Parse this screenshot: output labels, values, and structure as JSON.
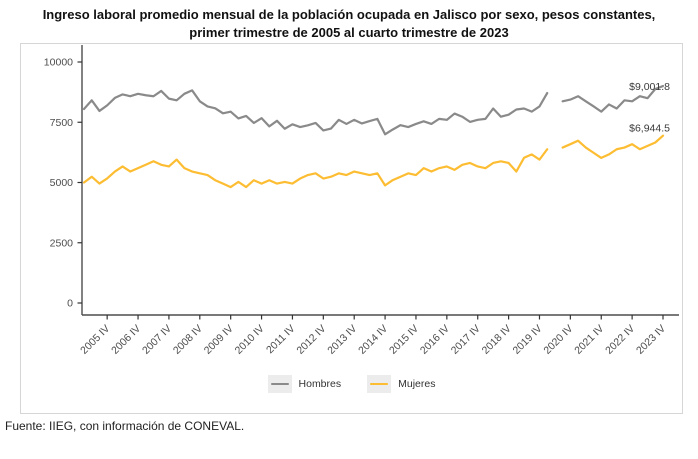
{
  "title": "Ingreso laboral promedio mensual de la población ocupada en Jalisco por sexo, pesos constantes, primer trimestre de 2005 al cuarto trimestre de 2023",
  "footer": {
    "source": "Fuente: IIEG, con información de CONEVAL."
  },
  "annotations": {
    "hombres_last": "$9,001.8",
    "mujeres_last": "$6,944.5"
  },
  "colors": {
    "hombres_line": "#8a8a8a",
    "mujeres_line": "#fdbd33",
    "axis": "#4d4d4d",
    "legend_key_bg": "#ececec"
  },
  "chart_data": {
    "type": "line",
    "title": "Ingreso laboral promedio mensual de la población ocupada en Jalisco por sexo, pesos constantes, primer trimestre de 2005 al cuarto trimestre de 2023",
    "x_start": "2005 Q1",
    "x_end": "2023 Q4",
    "x_frequency": "quarterly",
    "gap_quarter": "2020 Q2",
    "x_tick_labels": [
      "2005 IV",
      "2006 IV",
      "2007 IV",
      "2008 IV",
      "2009 IV",
      "2010 IV",
      "2011 IV",
      "2012 IV",
      "2013 IV",
      "2014 IV",
      "2015 IV",
      "2016 IV",
      "2017 IV",
      "2018 IV",
      "2019 IV",
      "2020 IV",
      "2021 IV",
      "2022 IV",
      "2023 IV"
    ],
    "y_ticks": [
      0,
      2500,
      5000,
      7500,
      10000
    ],
    "ylim": [
      0,
      10000
    ],
    "legend_position": "bottom",
    "grid": false,
    "series": [
      {
        "name": "Hombres",
        "color": "#8a8a8a",
        "values": [
          8050,
          8410,
          7970,
          8200,
          8510,
          8655,
          8580,
          8680,
          8620,
          8580,
          8800,
          8480,
          8410,
          8680,
          8825,
          8370,
          8155,
          8080,
          7870,
          7940,
          7660,
          7760,
          7470,
          7670,
          7330,
          7560,
          7230,
          7415,
          7300,
          7375,
          7470,
          7160,
          7240,
          7600,
          7430,
          7600,
          7450,
          7550,
          7640,
          7000,
          7200,
          7380,
          7300,
          7430,
          7540,
          7430,
          7640,
          7600,
          7860,
          7730,
          7515,
          7600,
          7640,
          8070,
          7730,
          7815,
          8030,
          8070,
          7940,
          8155,
          8710,
          null,
          8370,
          8440,
          8580,
          8370,
          8160,
          7940,
          8240,
          8070,
          8410,
          8370,
          8580,
          8500,
          8880,
          9001.8
        ]
      },
      {
        "name": "Mujeres",
        "color": "#fdbd33",
        "values": [
          5000,
          5240,
          4955,
          5170,
          5455,
          5665,
          5455,
          5595,
          5735,
          5880,
          5735,
          5665,
          5950,
          5595,
          5455,
          5380,
          5310,
          5095,
          4955,
          4810,
          5025,
          4810,
          5095,
          4955,
          5095,
          4955,
          5025,
          4955,
          5165,
          5310,
          5380,
          5165,
          5240,
          5380,
          5310,
          5455,
          5380,
          5310,
          5380,
          4880,
          5100,
          5240,
          5380,
          5310,
          5595,
          5455,
          5595,
          5665,
          5525,
          5735,
          5810,
          5665,
          5595,
          5810,
          5880,
          5810,
          5455,
          6025,
          6165,
          5950,
          6380,
          null,
          6450,
          6590,
          6735,
          6450,
          6235,
          6020,
          6165,
          6380,
          6450,
          6590,
          6380,
          6520,
          6660,
          6944.5
        ]
      }
    ]
  }
}
